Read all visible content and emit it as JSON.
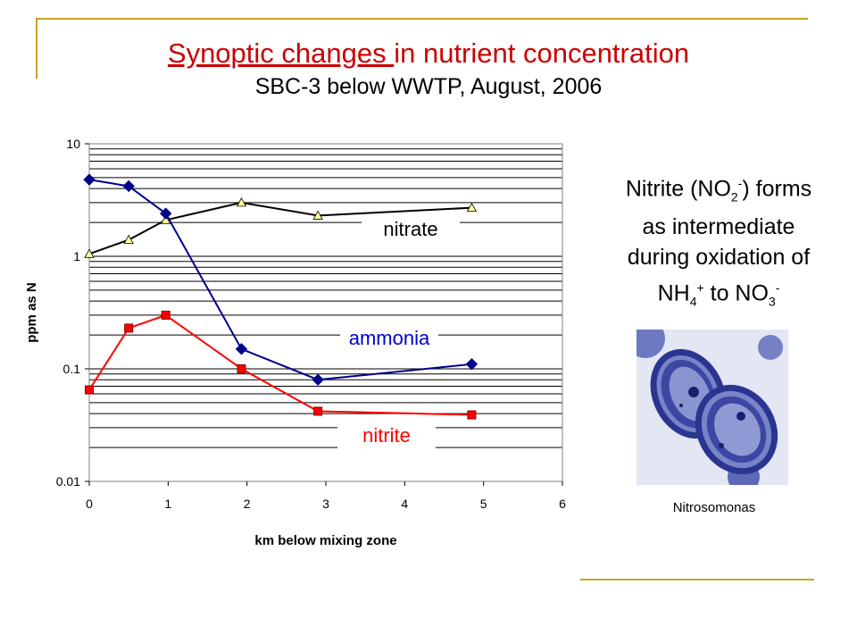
{
  "slide": {
    "title_underlined": "Synoptic changes ",
    "title_rest": "in nutrient concentration",
    "subtitle": "SBC-3 below WWTP, August, 2006",
    "accent_color": "#c9a227"
  },
  "note": {
    "line1_a": "Nitrite (NO",
    "line1_sub": "2",
    "line1_sup": "-",
    "line1_b": ") forms",
    "line2": "as intermediate",
    "line3": "during oxidation of",
    "line4_a": "NH",
    "line4_sub": "4",
    "line4_sup": "+",
    "line4_b": " to NO",
    "line4_sub2": "3",
    "line4_sup2": "-"
  },
  "image": {
    "caption": "Nitrosomonas",
    "label": "nitrosomonas-micrograph"
  },
  "chart_data": {
    "type": "line",
    "xlabel": "km below mixing zone",
    "ylabel": "ppm as N",
    "xlim": [
      0,
      6
    ],
    "ylim": [
      0.01,
      10
    ],
    "yscale": "log",
    "x_ticks": [
      "0",
      "1",
      "2",
      "3",
      "4",
      "5",
      "6"
    ],
    "y_ticks": [
      "0.01",
      "0.1",
      "1",
      "10"
    ],
    "grid": true,
    "series": [
      {
        "name": "nitrate",
        "color": "#000000",
        "marker_color": "#ffff99",
        "marker": "triangle",
        "x": [
          0,
          0.5,
          0.97,
          1.93,
          2.9,
          4.85
        ],
        "y": [
          1.05,
          1.4,
          2.1,
          3.0,
          2.3,
          2.7
        ]
      },
      {
        "name": "ammonia",
        "color": "#00008b",
        "marker_color": "#00008b",
        "marker": "diamond",
        "x": [
          0,
          0.5,
          0.97,
          1.93,
          2.9,
          4.85
        ],
        "y": [
          4.8,
          4.2,
          2.4,
          0.15,
          0.08,
          0.11
        ]
      },
      {
        "name": "nitrite",
        "color": "#ff0000",
        "marker_color": "#ff0000",
        "marker": "square",
        "x": [
          0,
          0.5,
          0.97,
          1.93,
          2.9,
          4.85
        ],
        "y": [
          0.065,
          0.23,
          0.3,
          0.1,
          0.042,
          0.039
        ]
      }
    ]
  }
}
